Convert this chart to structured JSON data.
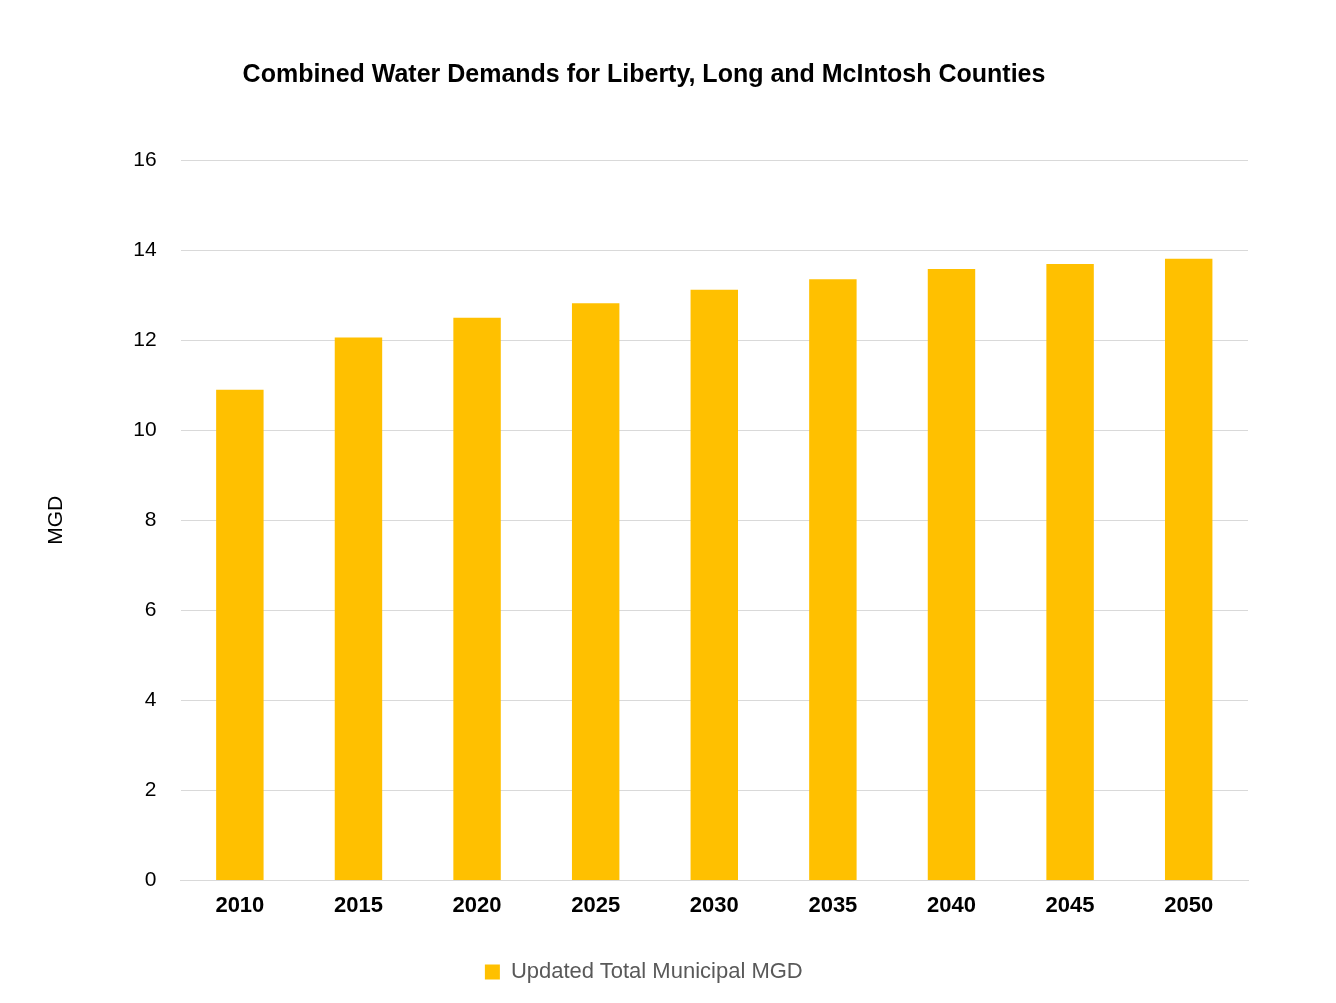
{
  "chart_data": {
    "type": "bar",
    "title": "Combined Water Demands for Liberty, Long and McIntosh Counties",
    "ylabel": "MGD",
    "categories": [
      "2010",
      "2015",
      "2020",
      "2025",
      "2030",
      "2035",
      "2040",
      "2045",
      "2050"
    ],
    "series": [
      {
        "name": "Updated Total Municipal MGD",
        "color": "#ffc000",
        "values": [
          10.9,
          12.06,
          12.5,
          12.82,
          13.12,
          13.35,
          13.58,
          13.69,
          13.81
        ]
      }
    ],
    "ylim": [
      0,
      16
    ],
    "yticks": [
      0,
      2,
      4,
      6,
      8,
      10,
      12,
      14,
      16
    ],
    "grid": "y",
    "legend": "bottom"
  }
}
